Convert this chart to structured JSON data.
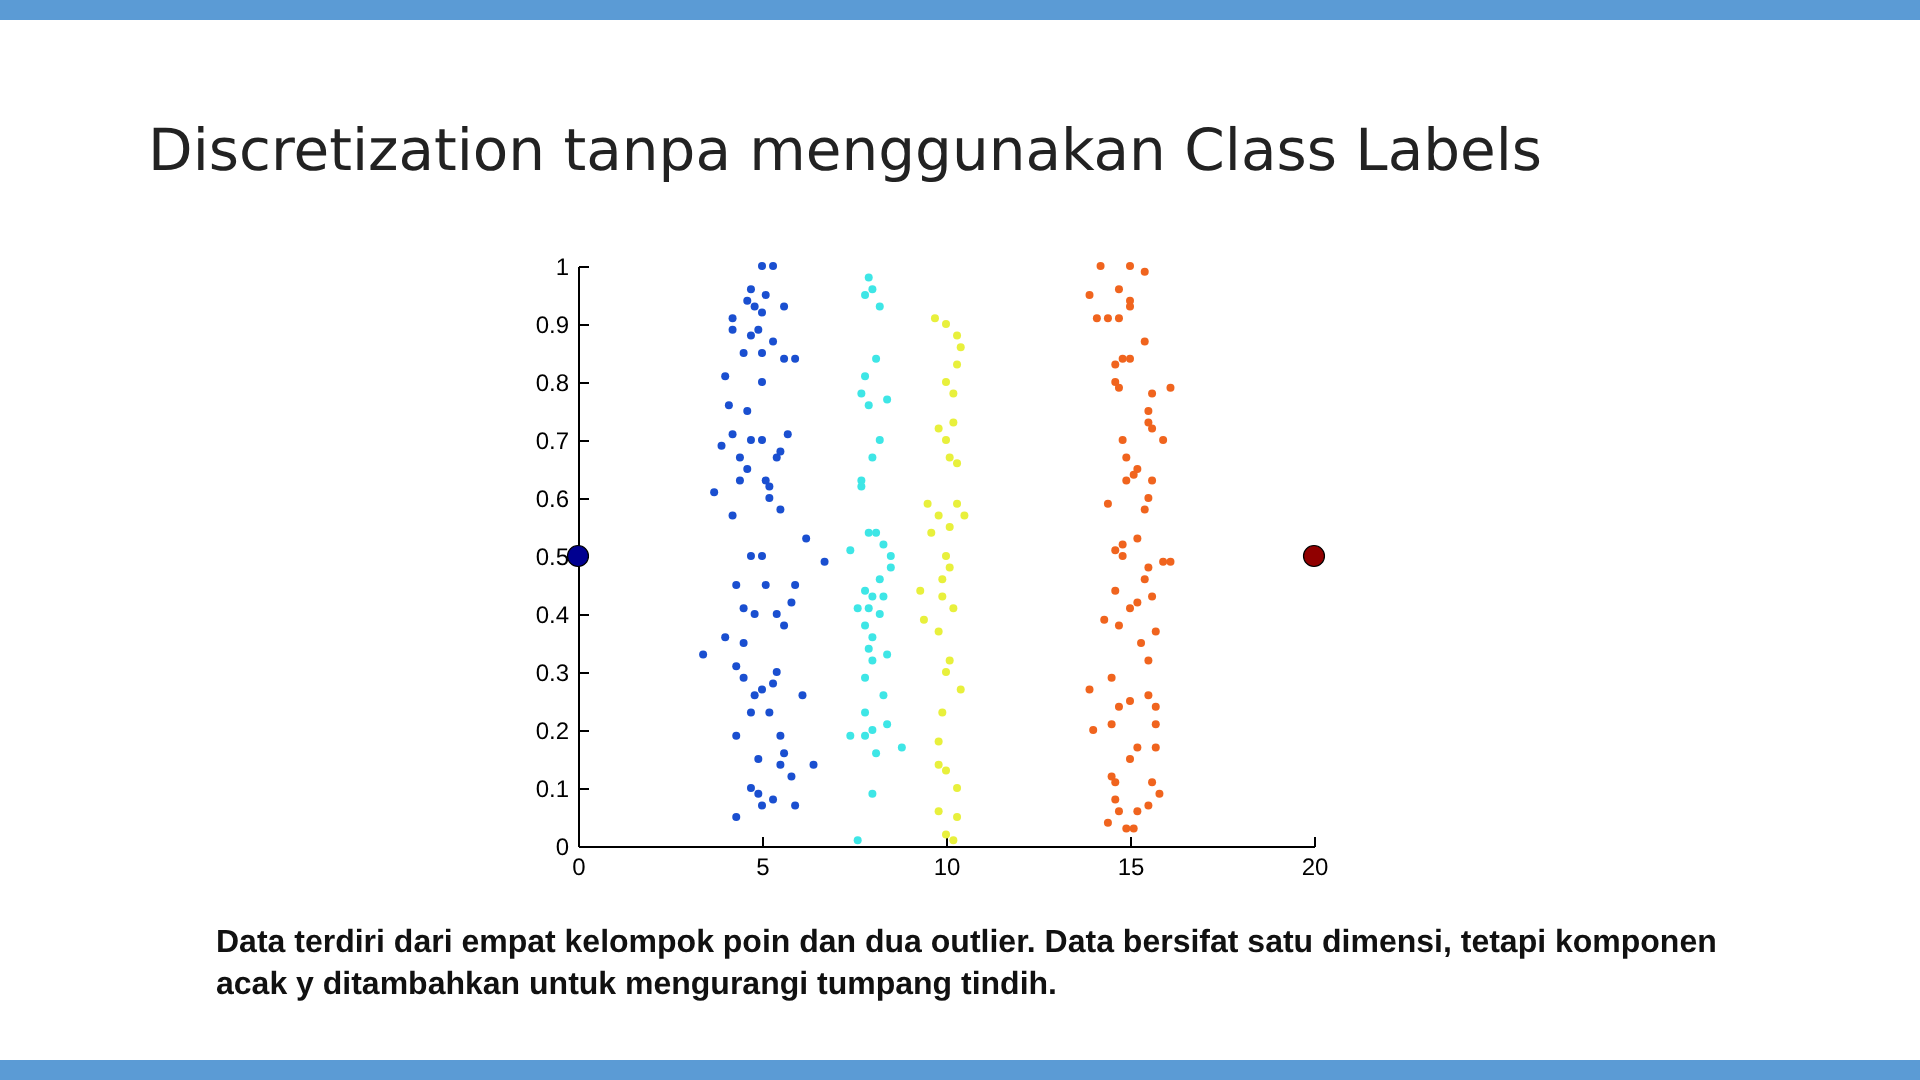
{
  "chart_data": {
    "type": "scatter",
    "title": "Discretization tanpa menggunakan Class Labels",
    "annotations": [
      "Data terdiri dari empat kelompok poin dan dua outlier. Data bersifat satu dimensi, tetapi komponen acak y ditambahkan untuk mengurangi tumpang tindih."
    ],
    "xlim": [
      0,
      20
    ],
    "xticks": [
      0,
      5,
      10,
      15,
      20
    ],
    "ylim": [
      0,
      1
    ],
    "yticks": [
      0,
      0.1,
      0.2,
      0.3,
      0.4,
      0.5,
      0.6,
      0.7,
      0.8,
      0.9,
      1
    ],
    "grid": false,
    "marker": "circle",
    "series": [
      {
        "color": "#1a4fd0",
        "x": [
          5.0,
          5.3,
          4.7,
          5.1,
          4.6,
          4.8,
          5.0,
          5.6,
          4.2,
          4.2,
          4.9,
          5.3,
          4.7,
          4.5,
          5.0,
          5.6,
          5.9,
          4.0,
          5.0,
          4.1,
          4.6,
          4.2,
          4.7,
          5.0,
          5.7,
          3.9,
          4.4,
          5.4,
          5.5,
          4.6,
          4.4,
          5.1,
          5.2,
          3.7,
          5.2,
          5.5,
          4.2,
          6.2,
          4.7,
          5.0,
          4.3,
          5.1,
          5.9,
          6.7,
          4.5,
          4.8,
          5.4,
          5.8,
          5.6,
          4.0,
          4.5,
          3.4,
          4.3,
          5.4,
          4.5,
          4.8,
          5.0,
          5.3,
          6.1,
          4.7,
          5.2,
          4.3,
          5.5,
          4.9,
          5.6,
          5.5,
          6.4,
          5.8,
          4.7,
          4.9,
          5.3,
          5.0,
          5.9,
          4.3
        ],
        "values": [
          1.0,
          1.0,
          0.96,
          0.95,
          0.94,
          0.93,
          0.92,
          0.93,
          0.91,
          0.89,
          0.89,
          0.87,
          0.88,
          0.85,
          0.85,
          0.84,
          0.84,
          0.81,
          0.8,
          0.76,
          0.75,
          0.71,
          0.7,
          0.7,
          0.71,
          0.69,
          0.67,
          0.67,
          0.68,
          0.65,
          0.63,
          0.63,
          0.62,
          0.61,
          0.6,
          0.58,
          0.57,
          0.53,
          0.5,
          0.5,
          0.45,
          0.45,
          0.45,
          0.49,
          0.41,
          0.4,
          0.4,
          0.42,
          0.38,
          0.36,
          0.35,
          0.33,
          0.31,
          0.3,
          0.29,
          0.26,
          0.27,
          0.28,
          0.26,
          0.23,
          0.23,
          0.19,
          0.19,
          0.15,
          0.16,
          0.14,
          0.14,
          0.12,
          0.1,
          0.09,
          0.08,
          0.07,
          0.07,
          0.05
        ]
      },
      {
        "color": "#3ee6e6",
        "x": [
          7.9,
          8.0,
          7.8,
          8.2,
          8.1,
          7.8,
          7.7,
          7.9,
          8.4,
          8.2,
          8.0,
          7.7,
          7.7,
          7.9,
          8.1,
          8.3,
          7.4,
          8.5,
          8.5,
          8.2,
          7.8,
          8.3,
          8.0,
          7.6,
          7.9,
          8.2,
          7.8,
          8.0,
          7.9,
          8.4,
          8.0,
          7.8,
          8.3,
          7.8,
          8.4,
          7.4,
          7.8,
          8.0,
          8.8,
          8.1,
          8.0,
          7.6
        ],
        "values": [
          0.98,
          0.96,
          0.95,
          0.93,
          0.84,
          0.81,
          0.78,
          0.76,
          0.77,
          0.7,
          0.67,
          0.63,
          0.62,
          0.54,
          0.54,
          0.52,
          0.51,
          0.5,
          0.48,
          0.46,
          0.44,
          0.43,
          0.43,
          0.41,
          0.41,
          0.4,
          0.38,
          0.36,
          0.34,
          0.33,
          0.32,
          0.29,
          0.26,
          0.23,
          0.21,
          0.19,
          0.19,
          0.2,
          0.17,
          0.16,
          0.09,
          0.01
        ]
      },
      {
        "color": "#e8f03c",
        "x": [
          9.7,
          10.0,
          10.3,
          10.4,
          10.3,
          10.0,
          10.2,
          10.2,
          9.8,
          10.0,
          10.1,
          10.3,
          9.5,
          10.3,
          9.8,
          10.5,
          10.1,
          9.6,
          10.0,
          10.1,
          9.9,
          9.3,
          9.9,
          10.2,
          9.4,
          9.8,
          10.1,
          10.0,
          10.4,
          9.9,
          9.8,
          9.8,
          10.0,
          10.3,
          9.8,
          10.3,
          10.0,
          10.2
        ],
        "values": [
          0.91,
          0.9,
          0.88,
          0.86,
          0.83,
          0.8,
          0.78,
          0.73,
          0.72,
          0.7,
          0.67,
          0.66,
          0.59,
          0.59,
          0.57,
          0.57,
          0.55,
          0.54,
          0.5,
          0.48,
          0.46,
          0.44,
          0.43,
          0.41,
          0.39,
          0.37,
          0.32,
          0.3,
          0.27,
          0.23,
          0.18,
          0.14,
          0.13,
          0.1,
          0.06,
          0.05,
          0.02,
          0.01
        ]
      },
      {
        "color": "#f0641e",
        "x": [
          14.2,
          15.0,
          15.4,
          13.9,
          14.7,
          15.0,
          15.0,
          14.1,
          14.4,
          14.7,
          15.4,
          14.6,
          14.8,
          15.0,
          14.6,
          14.7,
          15.6,
          16.1,
          15.5,
          15.5,
          15.6,
          15.9,
          14.8,
          14.9,
          15.2,
          15.6,
          14.9,
          15.1,
          15.5,
          14.4,
          15.4,
          15.2,
          14.6,
          14.8,
          15.9,
          14.8,
          15.5,
          16.1,
          15.4,
          14.6,
          15.0,
          15.6,
          14.3,
          14.7,
          15.2,
          15.3,
          15.7,
          15.5,
          13.9,
          14.5,
          15.0,
          15.5,
          15.7,
          14.7,
          14.5,
          14.0,
          15.7,
          15.2,
          15.7,
          15.0,
          14.5,
          14.6,
          15.6,
          15.8,
          14.6,
          15.2,
          15.5,
          14.7,
          14.4,
          14.9,
          15.1
        ],
        "values": [
          1.0,
          1.0,
          0.99,
          0.95,
          0.96,
          0.94,
          0.93,
          0.91,
          0.91,
          0.91,
          0.87,
          0.83,
          0.84,
          0.84,
          0.8,
          0.79,
          0.78,
          0.79,
          0.75,
          0.73,
          0.72,
          0.7,
          0.7,
          0.67,
          0.65,
          0.63,
          0.63,
          0.64,
          0.6,
          0.59,
          0.58,
          0.53,
          0.51,
          0.5,
          0.49,
          0.52,
          0.48,
          0.49,
          0.46,
          0.44,
          0.41,
          0.43,
          0.39,
          0.38,
          0.42,
          0.35,
          0.37,
          0.32,
          0.27,
          0.29,
          0.25,
          0.26,
          0.24,
          0.24,
          0.21,
          0.2,
          0.21,
          0.17,
          0.17,
          0.15,
          0.12,
          0.11,
          0.11,
          0.09,
          0.08,
          0.06,
          0.07,
          0.06,
          0.04,
          0.03,
          0.03
        ]
      },
      {
        "color": "#000090",
        "x": [
          0
        ],
        "values": [
          0.5
        ]
      },
      {
        "color": "#900000",
        "x": [
          20
        ],
        "values": [
          0.5
        ]
      }
    ]
  }
}
